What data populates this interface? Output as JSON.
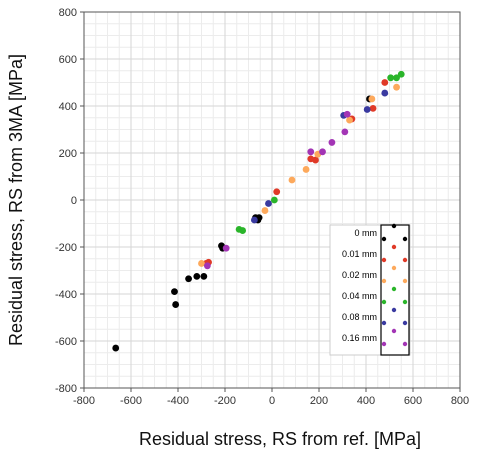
{
  "chart_data": {
    "type": "scatter",
    "xlabel": "Residual stress, RS from ref. [MPa]",
    "ylabel": "Residual stress, RS from 3MA [MPa]",
    "xlim": [
      -800,
      800
    ],
    "ylim": [
      -800,
      800
    ],
    "major_tick_step": 200,
    "minor_tick_step": 50,
    "xticks": [
      "-800",
      "-600",
      "-400",
      "-200",
      "0",
      "200",
      "400",
      "600",
      "800"
    ],
    "yticks": [
      "800",
      "600",
      "400",
      "200",
      "0",
      "-200",
      "-400",
      "-600",
      "-800"
    ],
    "grid": true,
    "legend_position": "lower-right, inside plot",
    "series": [
      {
        "name": "0 mm",
        "color": "#000000",
        "points": [
          [
            -665,
            -630
          ],
          [
            -415,
            -390
          ],
          [
            -410,
            -445
          ],
          [
            -355,
            -335
          ],
          [
            -320,
            -325
          ],
          [
            -290,
            -325
          ],
          [
            -215,
            -195
          ],
          [
            -210,
            -205
          ],
          [
            -70,
            -75
          ],
          [
            -60,
            -85
          ],
          [
            -55,
            -75
          ],
          [
            415,
            430
          ]
        ]
      },
      {
        "name": "0.01 mm",
        "color": "#e03a28",
        "points": [
          [
            -280,
            -270
          ],
          [
            -270,
            -265
          ],
          [
            20,
            35
          ],
          [
            165,
            175
          ],
          [
            185,
            170
          ],
          [
            340,
            345
          ],
          [
            430,
            390
          ],
          [
            480,
            500
          ]
        ]
      },
      {
        "name": "0.02 mm",
        "color": "#fda95c",
        "points": [
          [
            -300,
            -270
          ],
          [
            -30,
            -45
          ],
          [
            85,
            85
          ],
          [
            145,
            130
          ],
          [
            195,
            195
          ],
          [
            330,
            340
          ],
          [
            425,
            430
          ],
          [
            530,
            480
          ]
        ]
      },
      {
        "name": "0.04 mm",
        "color": "#2ab52a",
        "points": [
          [
            -140,
            -125
          ],
          [
            -125,
            -130
          ],
          [
            10,
            0
          ],
          [
            505,
            520
          ],
          [
            530,
            520
          ],
          [
            550,
            535
          ]
        ]
      },
      {
        "name": "0.08 mm",
        "color": "#3a3aa0",
        "points": [
          [
            -75,
            -85
          ],
          [
            -15,
            -15
          ],
          [
            305,
            360
          ],
          [
            405,
            385
          ],
          [
            480,
            455
          ]
        ]
      },
      {
        "name": "0.16 mm",
        "color": "#a335b5",
        "points": [
          [
            -275,
            -280
          ],
          [
            -195,
            -205
          ],
          [
            165,
            205
          ],
          [
            215,
            205
          ],
          [
            255,
            245
          ],
          [
            310,
            290
          ],
          [
            320,
            365
          ]
        ]
      }
    ]
  }
}
